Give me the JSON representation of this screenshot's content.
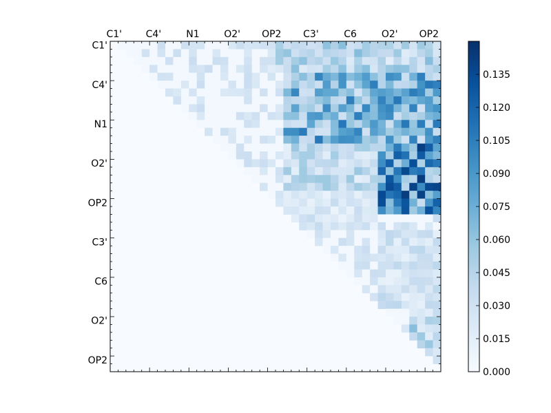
{
  "chart_data": {
    "type": "heatmap",
    "title": "",
    "colormap": "Blues",
    "x_tick_labels": [
      "C1'",
      "C4'",
      "N1",
      "O2'",
      "OP2",
      "C3'",
      "C6",
      "O2'",
      "OP2"
    ],
    "y_tick_labels": [
      "C1'",
      "C4'",
      "N1",
      "O2'",
      "OP2",
      "C3'",
      "C6",
      "O2'",
      "OP2"
    ],
    "n_cells": 42,
    "tick_every": 5,
    "triangle": "upper",
    "colorbar": {
      "range": [
        0.0,
        0.15
      ],
      "ticks": [
        "0.000",
        "0.015",
        "0.030",
        "0.045",
        "0.060",
        "0.075",
        "0.090",
        "0.105",
        "0.120",
        "0.135"
      ],
      "colors": [
        "#f7fbff",
        "#deebf7",
        "#c6dbef",
        "#9ecae1",
        "#6baed6",
        "#4292c6",
        "#2171b5",
        "#08519c",
        "#08306b"
      ]
    },
    "grid": false,
    "regions": [
      {
        "rows": [
          0,
          3
        ],
        "cols": [
          20,
          41
        ],
        "value": 0.045
      },
      {
        "rows": [
          4,
          12
        ],
        "cols": [
          22,
          41
        ],
        "value": 0.075
      },
      {
        "rows": [
          13,
          21
        ],
        "cols": [
          34,
          41
        ],
        "value": 0.1
      },
      {
        "rows": [
          13,
          18
        ],
        "cols": [
          22,
          33
        ],
        "value": 0.04
      },
      {
        "rows": [
          19,
          23
        ],
        "cols": [
          22,
          33
        ],
        "value": 0.025
      },
      {
        "rows": [
          24,
          33
        ],
        "cols": [
          34,
          41
        ],
        "value": 0.03
      },
      {
        "rows": [
          34,
          38
        ],
        "cols": [
          38,
          41
        ],
        "value": 0.045
      }
    ]
  }
}
